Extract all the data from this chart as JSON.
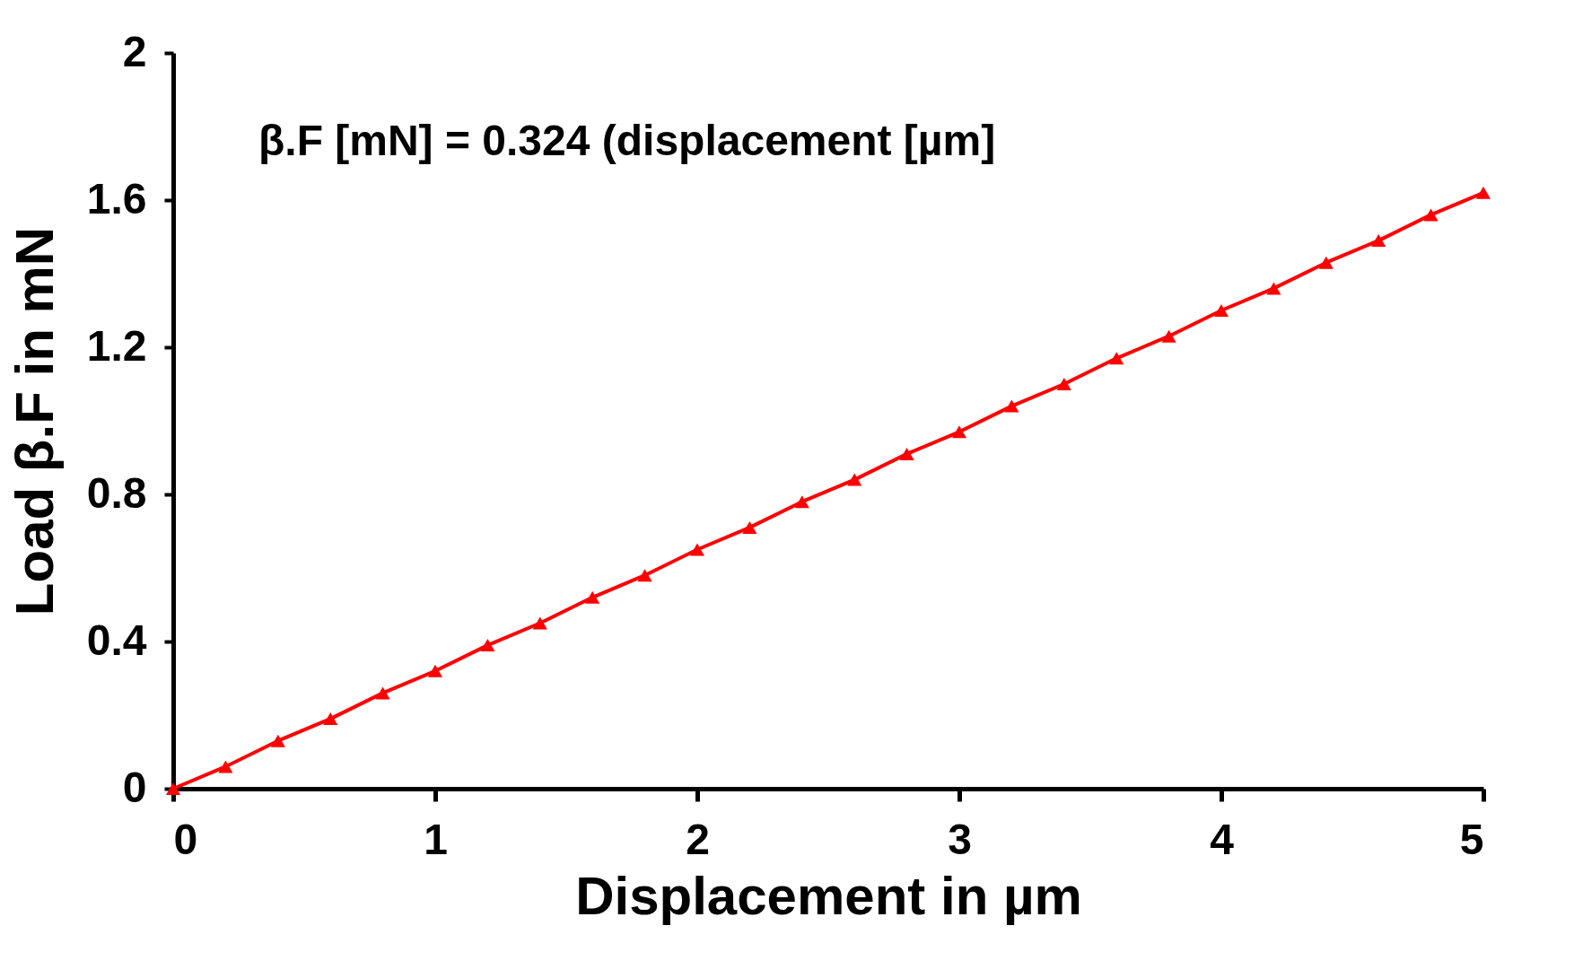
{
  "chart_data": {
    "type": "line",
    "xlabel": "Displacement in µm",
    "ylabel": "Load β.F in mN",
    "annotations": [
      "β.F [mN] = 0.324 (displacement [µm]"
    ],
    "x": [
      0,
      0.2,
      0.4,
      0.6,
      0.8,
      1,
      1.2,
      1.4,
      1.6,
      1.8,
      2,
      2.2,
      2.4,
      2.6,
      2.8,
      3,
      3.2,
      3.4,
      3.6,
      3.8,
      4,
      4.2,
      4.4,
      4.6,
      4.8,
      5
    ],
    "series": [
      {
        "color": "#ff0000",
        "values": [
          0,
          0.06,
          0.13,
          0.19,
          0.26,
          0.32,
          0.39,
          0.45,
          0.52,
          0.58,
          0.65,
          0.71,
          0.78,
          0.84,
          0.91,
          0.97,
          1.04,
          1.1,
          1.17,
          1.23,
          1.3,
          1.36,
          1.43,
          1.49,
          1.56,
          1.62
        ]
      }
    ],
    "xlim": [
      0,
      5
    ],
    "xticks": [
      0,
      1,
      2,
      3,
      4,
      5
    ],
    "ylim": [
      0,
      2
    ],
    "yticks": [
      0,
      0.4,
      0.8,
      1.2,
      1.6,
      2
    ],
    "grid": false,
    "marker": "triangle",
    "line_style": "solid"
  }
}
